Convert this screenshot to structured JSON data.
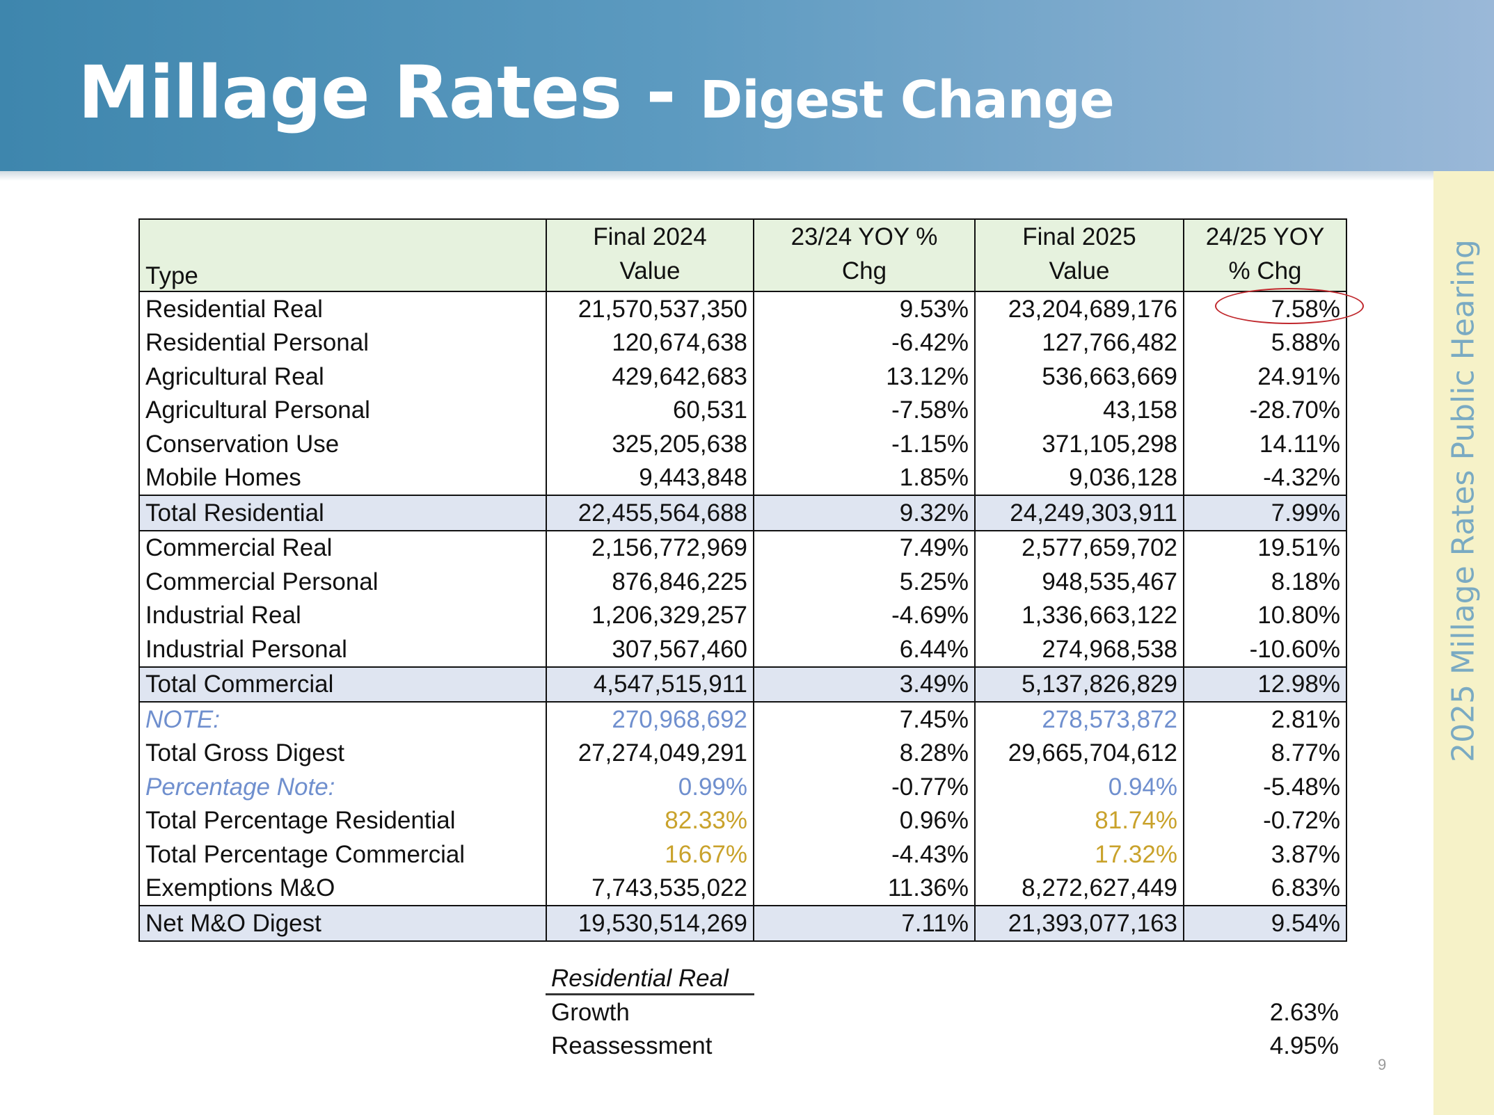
{
  "slide": {
    "title_main": "Millage Rates - ",
    "title_sub": "Digest Change",
    "side_label": "2025 Millage Rates Public Hearing",
    "page_number": "9"
  },
  "table": {
    "headers": {
      "type": "Type",
      "col1_line1": "Final 2024",
      "col1_line2": "Value",
      "col2_line1": "23/24 YOY %",
      "col2_line2": "Chg",
      "col3_line1": "Final 2025",
      "col3_line2": "Value",
      "col4_line1": "24/25 YOY",
      "col4_line2": "% Chg"
    },
    "rows": [
      {
        "type": "Residential Real",
        "v2024": "21,570,537,350",
        "chg2324": "9.53%",
        "v2025": "23,204,689,176",
        "chg2425": "7.58%"
      },
      {
        "type": "Residential Personal",
        "v2024": "120,674,638",
        "chg2324": "-6.42%",
        "v2025": "127,766,482",
        "chg2425": "5.88%"
      },
      {
        "type": "Agricultural Real",
        "v2024": "429,642,683",
        "chg2324": "13.12%",
        "v2025": "536,663,669",
        "chg2425": "24.91%"
      },
      {
        "type": "Agricultural Personal",
        "v2024": "60,531",
        "chg2324": "-7.58%",
        "v2025": "43,158",
        "chg2425": "-28.70%"
      },
      {
        "type": "Conservation Use",
        "v2024": "325,205,638",
        "chg2324": "-1.15%",
        "v2025": "371,105,298",
        "chg2425": "14.11%"
      },
      {
        "type": "Mobile Homes",
        "v2024": "9,443,848",
        "chg2324": "1.85%",
        "v2025": "9,036,128",
        "chg2425": "-4.32%"
      },
      {
        "type": "Total Residential",
        "v2024": "22,455,564,688",
        "chg2324": "9.32%",
        "v2025": "24,249,303,911",
        "chg2425": "7.99%"
      },
      {
        "type": "Commercial Real",
        "v2024": "2,156,772,969",
        "chg2324": "7.49%",
        "v2025": "2,577,659,702",
        "chg2425": "19.51%"
      },
      {
        "type": "Commercial Personal",
        "v2024": "876,846,225",
        "chg2324": "5.25%",
        "v2025": "948,535,467",
        "chg2425": "8.18%"
      },
      {
        "type": "Industrial Real",
        "v2024": "1,206,329,257",
        "chg2324": "-4.69%",
        "v2025": "1,336,663,122",
        "chg2425": "10.80%"
      },
      {
        "type": "Industrial Personal",
        "v2024": "307,567,460",
        "chg2324": "6.44%",
        "v2025": "274,968,538",
        "chg2425": "-10.60%"
      },
      {
        "type": "Total Commercial",
        "v2024": "4,547,515,911",
        "chg2324": "3.49%",
        "v2025": "5,137,826,829",
        "chg2425": "12.98%"
      },
      {
        "type": "NOTE:",
        "v2024": "270,968,692",
        "chg2324": "7.45%",
        "v2025": "278,573,872",
        "chg2425": "2.81%"
      },
      {
        "type": "Total Gross Digest",
        "v2024": "27,274,049,291",
        "chg2324": "8.28%",
        "v2025": "29,665,704,612",
        "chg2425": "8.77%"
      },
      {
        "type": "Percentage Note:",
        "v2024": "0.99%",
        "chg2324": "-0.77%",
        "v2025": "0.94%",
        "chg2425": "-5.48%"
      },
      {
        "type": "Total Percentage Residential",
        "v2024": "82.33%",
        "chg2324": "0.96%",
        "v2025": "81.74%",
        "chg2425": "-0.72%"
      },
      {
        "type": "Total Percentage Commercial",
        "v2024": "16.67%",
        "chg2324": "-4.43%",
        "v2025": "17.32%",
        "chg2425": "3.87%"
      },
      {
        "type": "Exemptions M&O",
        "v2024": "7,743,535,022",
        "chg2324": "11.36%",
        "v2025": "8,272,627,449",
        "chg2425": "6.83%"
      },
      {
        "type": "Net M&O Digest",
        "v2024": "19,530,514,269",
        "chg2324": "7.11%",
        "v2025": "21,393,077,163",
        "chg2425": "9.54%"
      }
    ]
  },
  "breakdown": {
    "heading": "Residential Real",
    "rows": [
      {
        "label": "Growth",
        "value": "2.63%"
      },
      {
        "label": "Reassessment",
        "value": "4.95%"
      }
    ]
  },
  "colors": {
    "header_start": "#3e86ad",
    "header_end": "#9ab8d8",
    "table_header_bg": "#e6f2de",
    "total_row_bg": "#dfe5f1",
    "note_blue": "#6f8fce",
    "gold": "#c9a22b",
    "circle_red": "#c0282d",
    "side_band": "#f6f2c8"
  }
}
